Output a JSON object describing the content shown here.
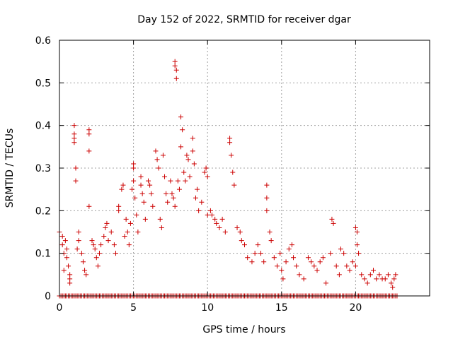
{
  "chart_data": {
    "type": "scatter",
    "title": "Day 152 of 2022, SRMTID for receiver dgar",
    "xlabel": "GPS time / hours",
    "ylabel": "SRMTID / TECUs",
    "xlim": [
      0,
      25
    ],
    "ylim": [
      0,
      0.6
    ],
    "xticks": [
      0,
      5,
      10,
      15,
      20
    ],
    "yticks": [
      0,
      0.1,
      0.2,
      0.3,
      0.4,
      0.5,
      0.6
    ],
    "xtick_labels": [
      "0",
      "5",
      "10",
      "15",
      "20"
    ],
    "ytick_labels": [
      "0",
      "0.1",
      "0.2",
      "0.3",
      "0.4",
      "0.5",
      "0.6"
    ],
    "grid": true,
    "marker": "+",
    "marker_color": "#cc0000",
    "series": [
      {
        "name": "SRMTID",
        "points": [
          [
            0.0,
            0.15
          ],
          [
            0.2,
            0.14
          ],
          [
            0.2,
            0.12
          ],
          [
            0.3,
            0.1
          ],
          [
            0.3,
            0.06
          ],
          [
            0.4,
            0.13
          ],
          [
            0.5,
            0.11
          ],
          [
            0.5,
            0.09
          ],
          [
            0.6,
            0.07
          ],
          [
            0.7,
            0.05
          ],
          [
            0.7,
            0.04
          ],
          [
            0.7,
            0.03
          ],
          [
            1.0,
            0.4
          ],
          [
            1.0,
            0.38
          ],
          [
            1.0,
            0.37
          ],
          [
            1.0,
            0.36
          ],
          [
            1.1,
            0.3
          ],
          [
            1.1,
            0.27
          ],
          [
            1.2,
            0.11
          ],
          [
            1.3,
            0.15
          ],
          [
            1.3,
            0.13
          ],
          [
            1.5,
            0.1
          ],
          [
            1.6,
            0.08
          ],
          [
            1.7,
            0.06
          ],
          [
            1.8,
            0.05
          ],
          [
            2.0,
            0.39
          ],
          [
            2.0,
            0.38
          ],
          [
            2.0,
            0.34
          ],
          [
            2.0,
            0.21
          ],
          [
            2.2,
            0.13
          ],
          [
            2.3,
            0.12
          ],
          [
            2.4,
            0.11
          ],
          [
            2.5,
            0.09
          ],
          [
            2.6,
            0.07
          ],
          [
            2.7,
            0.1
          ],
          [
            2.8,
            0.12
          ],
          [
            3.0,
            0.14
          ],
          [
            3.1,
            0.16
          ],
          [
            3.2,
            0.17
          ],
          [
            3.3,
            0.13
          ],
          [
            3.5,
            0.15
          ],
          [
            3.7,
            0.12
          ],
          [
            3.8,
            0.1
          ],
          [
            4.0,
            0.21
          ],
          [
            4.0,
            0.2
          ],
          [
            4.2,
            0.25
          ],
          [
            4.3,
            0.26
          ],
          [
            4.4,
            0.14
          ],
          [
            4.5,
            0.18
          ],
          [
            4.6,
            0.15
          ],
          [
            4.7,
            0.12
          ],
          [
            4.8,
            0.17
          ],
          [
            4.9,
            0.25
          ],
          [
            5.0,
            0.31
          ],
          [
            5.0,
            0.3
          ],
          [
            5.0,
            0.27
          ],
          [
            5.1,
            0.23
          ],
          [
            5.2,
            0.19
          ],
          [
            5.3,
            0.15
          ],
          [
            5.5,
            0.28
          ],
          [
            5.5,
            0.26
          ],
          [
            5.6,
            0.24
          ],
          [
            5.7,
            0.22
          ],
          [
            5.8,
            0.18
          ],
          [
            6.0,
            0.27
          ],
          [
            6.1,
            0.26
          ],
          [
            6.2,
            0.24
          ],
          [
            6.3,
            0.21
          ],
          [
            6.5,
            0.34
          ],
          [
            6.6,
            0.32
          ],
          [
            6.7,
            0.3
          ],
          [
            6.8,
            0.18
          ],
          [
            6.9,
            0.16
          ],
          [
            7.0,
            0.33
          ],
          [
            7.1,
            0.28
          ],
          [
            7.2,
            0.24
          ],
          [
            7.3,
            0.22
          ],
          [
            7.5,
            0.27
          ],
          [
            7.6,
            0.24
          ],
          [
            7.7,
            0.23
          ],
          [
            7.8,
            0.21
          ],
          [
            7.8,
            0.55
          ],
          [
            7.8,
            0.54
          ],
          [
            7.9,
            0.53
          ],
          [
            7.9,
            0.51
          ],
          [
            8.0,
            0.27
          ],
          [
            8.1,
            0.25
          ],
          [
            8.2,
            0.35
          ],
          [
            8.2,
            0.42
          ],
          [
            8.3,
            0.39
          ],
          [
            8.4,
            0.29
          ],
          [
            8.5,
            0.27
          ],
          [
            8.6,
            0.33
          ],
          [
            8.7,
            0.32
          ],
          [
            8.8,
            0.28
          ],
          [
            9.0,
            0.34
          ],
          [
            9.0,
            0.37
          ],
          [
            9.1,
            0.31
          ],
          [
            9.2,
            0.23
          ],
          [
            9.3,
            0.25
          ],
          [
            9.4,
            0.2
          ],
          [
            9.6,
            0.22
          ],
          [
            9.8,
            0.29
          ],
          [
            9.9,
            0.3
          ],
          [
            10.0,
            0.28
          ],
          [
            10.0,
            0.19
          ],
          [
            10.2,
            0.2
          ],
          [
            10.3,
            0.19
          ],
          [
            10.5,
            0.18
          ],
          [
            10.6,
            0.17
          ],
          [
            10.8,
            0.16
          ],
          [
            11.0,
            0.18
          ],
          [
            11.2,
            0.15
          ],
          [
            11.5,
            0.37
          ],
          [
            11.5,
            0.36
          ],
          [
            11.6,
            0.33
          ],
          [
            11.7,
            0.29
          ],
          [
            11.8,
            0.26
          ],
          [
            12.0,
            0.16
          ],
          [
            12.2,
            0.15
          ],
          [
            12.3,
            0.13
          ],
          [
            12.5,
            0.12
          ],
          [
            12.7,
            0.09
          ],
          [
            13.0,
            0.08
          ],
          [
            13.2,
            0.1
          ],
          [
            13.4,
            0.12
          ],
          [
            13.6,
            0.1
          ],
          [
            13.8,
            0.08
          ],
          [
            14.0,
            0.26
          ],
          [
            14.0,
            0.23
          ],
          [
            14.0,
            0.2
          ],
          [
            14.2,
            0.15
          ],
          [
            14.3,
            0.13
          ],
          [
            14.5,
            0.09
          ],
          [
            14.7,
            0.07
          ],
          [
            14.9,
            0.1
          ],
          [
            15.0,
            0.06
          ],
          [
            15.1,
            0.04
          ],
          [
            15.3,
            0.08
          ],
          [
            15.5,
            0.11
          ],
          [
            15.7,
            0.12
          ],
          [
            15.8,
            0.09
          ],
          [
            16.0,
            0.07
          ],
          [
            16.2,
            0.05
          ],
          [
            16.5,
            0.04
          ],
          [
            16.8,
            0.09
          ],
          [
            17.0,
            0.08
          ],
          [
            17.2,
            0.07
          ],
          [
            17.4,
            0.06
          ],
          [
            17.6,
            0.08
          ],
          [
            17.8,
            0.09
          ],
          [
            18.0,
            0.03
          ],
          [
            18.3,
            0.1
          ],
          [
            18.4,
            0.18
          ],
          [
            18.5,
            0.17
          ],
          [
            18.7,
            0.07
          ],
          [
            18.9,
            0.05
          ],
          [
            19.0,
            0.11
          ],
          [
            19.2,
            0.1
          ],
          [
            19.4,
            0.07
          ],
          [
            19.6,
            0.06
          ],
          [
            19.8,
            0.08
          ],
          [
            20.0,
            0.07
          ],
          [
            20.0,
            0.16
          ],
          [
            20.1,
            0.15
          ],
          [
            20.1,
            0.12
          ],
          [
            20.2,
            0.1
          ],
          [
            20.4,
            0.05
          ],
          [
            20.6,
            0.04
          ],
          [
            20.8,
            0.03
          ],
          [
            21.0,
            0.05
          ],
          [
            21.2,
            0.06
          ],
          [
            21.4,
            0.04
          ],
          [
            21.6,
            0.05
          ],
          [
            21.8,
            0.04
          ],
          [
            22.0,
            0.04
          ],
          [
            22.2,
            0.05
          ],
          [
            22.4,
            0.03
          ],
          [
            22.5,
            0.02
          ],
          [
            22.6,
            0.04
          ],
          [
            22.7,
            0.05
          ]
        ],
        "zero_baseline": {
          "x_start": 0.0,
          "x_end": 22.8,
          "step": 0.1,
          "y": 0
        }
      }
    ]
  }
}
